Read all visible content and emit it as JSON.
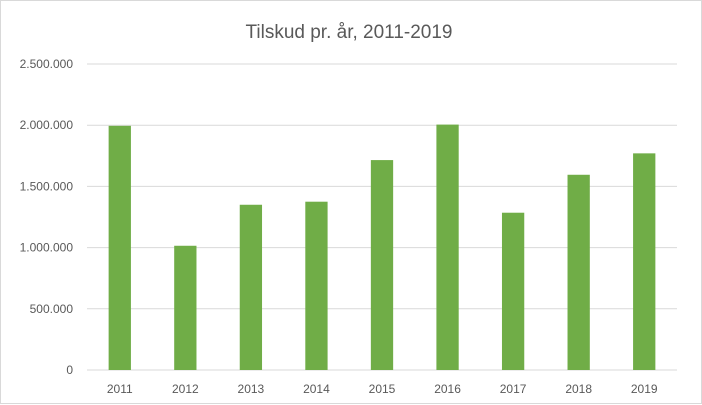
{
  "chart_data": {
    "type": "bar",
    "title": "Tilskud pr. år, 2011-2019",
    "xlabel": "",
    "ylabel": "",
    "categories": [
      "2011",
      "2012",
      "2013",
      "2014",
      "2015",
      "2016",
      "2017",
      "2018",
      "2019"
    ],
    "values": [
      1995000,
      1015000,
      1350000,
      1375000,
      1715000,
      2005000,
      1285000,
      1595000,
      1770000
    ],
    "ylim": [
      0,
      2500000
    ],
    "yticks": [
      0,
      500000,
      1000000,
      1500000,
      2000000,
      2500000
    ],
    "ytick_labels": [
      "0",
      "500.000",
      "1.000.000",
      "1.500.000",
      "2.000.000",
      "2.500.000"
    ],
    "grid": true,
    "legend": "none",
    "bar_color": "#70ad47"
  }
}
